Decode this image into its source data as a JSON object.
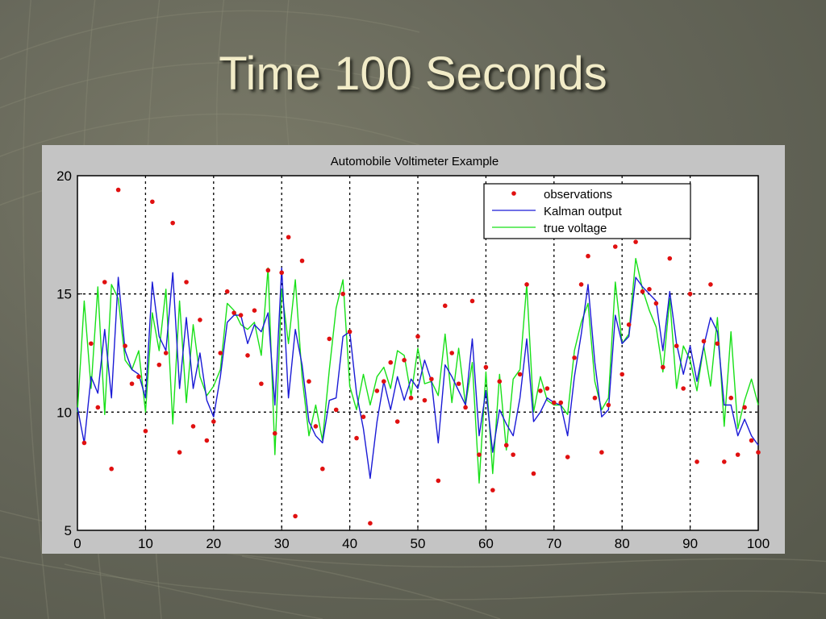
{
  "slide": {
    "title": "Time 100 Seconds"
  },
  "colors": {
    "observations": "#e01010",
    "kalman": "#1a1ad6",
    "true_voltage": "#18e018",
    "panel": "#c4c4c4",
    "plot_bg": "#ffffff"
  },
  "chart_data": {
    "type": "line",
    "title": "Automobile Voltimeter Example",
    "xlabel": "",
    "ylabel": "",
    "xlim": [
      0,
      100
    ],
    "ylim": [
      5,
      20
    ],
    "xticks": [
      0,
      10,
      20,
      30,
      40,
      50,
      60,
      70,
      80,
      90,
      100
    ],
    "yticks": [
      5,
      10,
      15,
      20
    ],
    "grid": "dotted",
    "legend_position": "top-right",
    "series": [
      {
        "name": "observations",
        "style": "points",
        "x": [
          1,
          2,
          3,
          4,
          5,
          6,
          7,
          8,
          9,
          10,
          11,
          12,
          13,
          14,
          15,
          16,
          17,
          18,
          19,
          20,
          21,
          22,
          23,
          24,
          25,
          26,
          27,
          28,
          29,
          30,
          31,
          32,
          33,
          34,
          35,
          36,
          37,
          38,
          39,
          40,
          41,
          42,
          43,
          44,
          45,
          46,
          47,
          48,
          49,
          50,
          51,
          52,
          53,
          54,
          55,
          56,
          57,
          58,
          59,
          60,
          61,
          62,
          63,
          64,
          65,
          66,
          67,
          68,
          69,
          70,
          71,
          72,
          73,
          74,
          75,
          76,
          77,
          78,
          79,
          80,
          81,
          82,
          83,
          84,
          85,
          86,
          87,
          88,
          89,
          90,
          91,
          92,
          93,
          94,
          95,
          96,
          97,
          98,
          99,
          100
        ],
        "y": [
          8.7,
          12.9,
          10.2,
          15.5,
          7.6,
          19.4,
          12.8,
          11.2,
          11.5,
          9.2,
          18.9,
          12.0,
          12.5,
          18.0,
          8.3,
          15.5,
          9.4,
          13.9,
          8.8,
          9.6,
          12.5,
          15.1,
          14.2,
          14.1,
          12.4,
          14.3,
          11.2,
          16.0,
          9.1,
          15.9,
          17.4,
          5.6,
          16.4,
          11.3,
          9.4,
          7.6,
          13.1,
          10.1,
          15.0,
          13.4,
          8.9,
          9.8,
          5.3,
          10.9,
          11.3,
          12.1,
          9.6,
          12.2,
          10.6,
          13.2,
          10.5,
          11.4,
          7.1,
          14.5,
          12.5,
          11.2,
          10.2,
          14.7,
          8.2,
          11.9,
          6.7,
          11.3,
          8.6,
          8.2,
          11.6,
          15.4,
          7.4,
          10.9,
          11.0,
          10.4,
          10.4,
          8.1,
          12.3,
          15.4,
          16.6,
          10.6,
          8.3,
          10.3,
          17.0,
          11.6,
          13.7,
          17.2,
          15.1,
          15.2,
          14.6,
          11.9,
          16.5,
          12.8,
          11.0,
          15.0,
          7.9,
          13.0,
          15.4,
          12.9,
          7.9,
          10.6,
          8.2,
          10.2,
          8.8,
          8.3
        ]
      },
      {
        "name": "Kalman output",
        "style": "line",
        "x": [
          0,
          1,
          2,
          3,
          4,
          5,
          6,
          7,
          8,
          9,
          10,
          11,
          12,
          13,
          14,
          15,
          16,
          17,
          18,
          19,
          20,
          21,
          22,
          23,
          24,
          25,
          26,
          27,
          28,
          29,
          30,
          31,
          32,
          33,
          34,
          35,
          36,
          37,
          38,
          39,
          40,
          41,
          42,
          43,
          44,
          45,
          46,
          47,
          48,
          49,
          50,
          51,
          52,
          53,
          54,
          55,
          56,
          57,
          58,
          59,
          60,
          61,
          62,
          63,
          64,
          65,
          66,
          67,
          68,
          69,
          70,
          71,
          72,
          73,
          74,
          75,
          76,
          77,
          78,
          79,
          80,
          81,
          82,
          83,
          84,
          85,
          86,
          87,
          88,
          89,
          90,
          91,
          92,
          93,
          94,
          95,
          96,
          97,
          98,
          99,
          100
        ],
        "y": [
          10.2,
          8.7,
          11.5,
          10.8,
          13.5,
          10.6,
          15.7,
          12.6,
          11.8,
          11.6,
          10.6,
          15.5,
          13.2,
          12.6,
          15.9,
          11.0,
          14.0,
          11.0,
          12.5,
          10.5,
          9.8,
          11.5,
          13.8,
          14.1,
          14.1,
          12.9,
          13.7,
          13.4,
          14.2,
          10.3,
          16.1,
          10.6,
          13.5,
          12.0,
          9.6,
          9.0,
          8.7,
          10.5,
          10.6,
          13.2,
          13.4,
          10.8,
          9.3,
          7.2,
          9.6,
          11.3,
          10.1,
          11.5,
          10.5,
          11.4,
          11.0,
          12.2,
          11.3,
          8.7,
          12.0,
          11.5,
          10.9,
          10.3,
          13.1,
          9.0,
          10.9,
          8.3,
          10.1,
          9.5,
          9.0,
          10.6,
          13.1,
          9.6,
          10.0,
          10.6,
          10.4,
          10.3,
          9.0,
          11.5,
          13.3,
          15.4,
          12.1,
          9.8,
          10.1,
          14.1,
          12.9,
          13.2,
          15.7,
          15.3,
          15.0,
          14.7,
          12.6,
          15.1,
          12.9,
          11.6,
          12.8,
          11.3,
          12.8,
          14.0,
          13.4,
          10.3,
          10.3,
          9.0,
          9.7,
          9.0,
          8.6
        ]
      },
      {
        "name": "true voltage",
        "style": "line",
        "x": [
          0,
          1,
          2,
          3,
          4,
          5,
          6,
          7,
          8,
          9,
          10,
          11,
          12,
          13,
          14,
          15,
          16,
          17,
          18,
          19,
          20,
          21,
          22,
          23,
          24,
          25,
          26,
          27,
          28,
          29,
          30,
          31,
          32,
          33,
          34,
          35,
          36,
          37,
          38,
          39,
          40,
          41,
          42,
          43,
          44,
          45,
          46,
          47,
          48,
          49,
          50,
          51,
          52,
          53,
          54,
          55,
          56,
          57,
          58,
          59,
          60,
          61,
          62,
          63,
          64,
          65,
          66,
          67,
          68,
          69,
          70,
          71,
          72,
          73,
          74,
          75,
          76,
          77,
          78,
          79,
          80,
          81,
          82,
          83,
          84,
          85,
          86,
          87,
          88,
          89,
          90,
          91,
          92,
          93,
          94,
          95,
          96,
          97,
          98,
          99,
          100
        ],
        "y": [
          10.0,
          14.7,
          11.0,
          15.3,
          9.9,
          15.4,
          14.8,
          12.2,
          11.8,
          12.6,
          10.0,
          14.2,
          12.6,
          15.2,
          9.5,
          14.7,
          10.4,
          13.7,
          11.5,
          10.7,
          11.1,
          11.8,
          14.6,
          14.3,
          13.7,
          13.5,
          13.8,
          12.4,
          16.1,
          8.2,
          15.2,
          12.9,
          15.6,
          11.5,
          9.0,
          10.3,
          8.8,
          11.8,
          14.4,
          15.6,
          11.1,
          10.1,
          11.6,
          10.3,
          11.5,
          11.9,
          11.0,
          12.6,
          12.4,
          10.7,
          12.7,
          11.2,
          11.3,
          10.7,
          13.3,
          10.4,
          12.7,
          10.3,
          12.1,
          7.0,
          11.7,
          7.4,
          11.6,
          8.4,
          11.4,
          11.8,
          15.4,
          10.0,
          11.5,
          10.5,
          10.3,
          10.3,
          9.9,
          12.6,
          13.8,
          14.6,
          11.3,
          10.1,
          10.6,
          15.5,
          12.9,
          13.3,
          16.5,
          15.2,
          14.3,
          13.6,
          11.7,
          14.8,
          11.0,
          12.8,
          12.2,
          10.9,
          12.8,
          11.1,
          14.0,
          9.4,
          13.4,
          9.3,
          10.5,
          11.4,
          10.3
        ]
      }
    ]
  }
}
